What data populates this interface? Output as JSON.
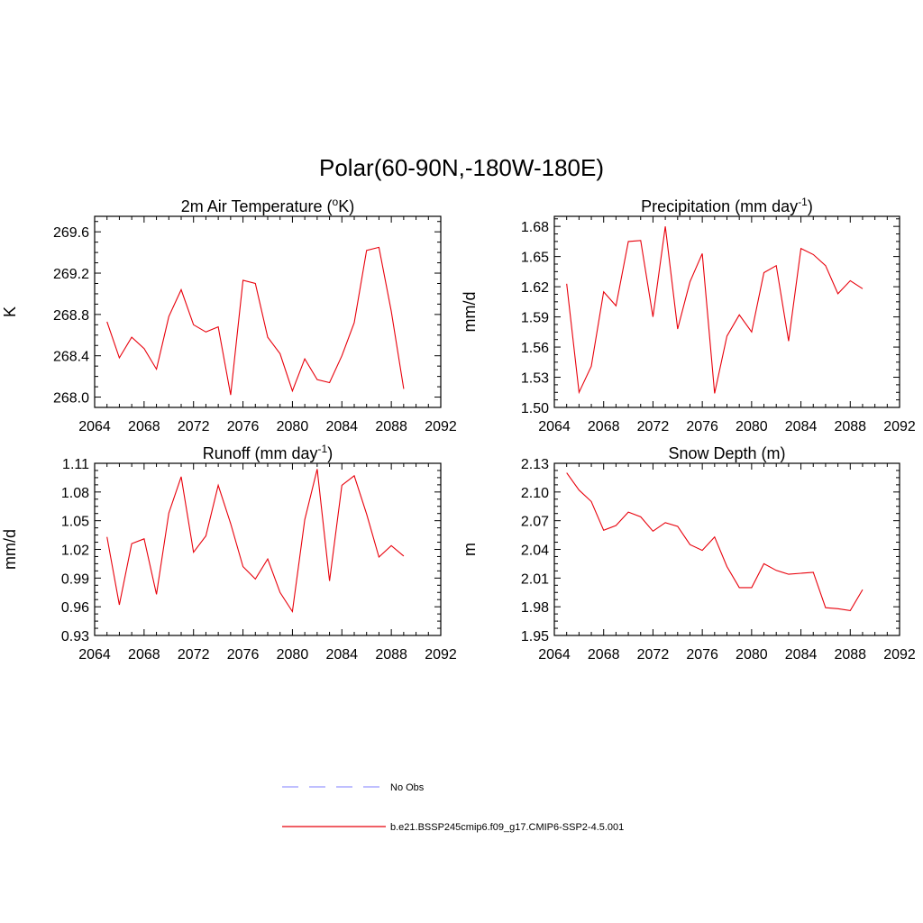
{
  "title": "Polar(60-90N,-180W-180E)",
  "colors": {
    "model": "#e8000b",
    "obs": "#9999ff"
  },
  "legend": {
    "items": [
      {
        "label": "No Obs",
        "style": "dashed",
        "color": "#9999ff"
      },
      {
        "label": "b.e21.BSSP245cmip6.f09_g17.CMIP6-SSP2-4.5.001",
        "style": "solid",
        "color": "#e8000b"
      }
    ]
  },
  "chart_data": [
    {
      "type": "line",
      "title": "2m Air Temperature",
      "title_parts": {
        "pre": "2m Air Temperature (",
        "sup": "o",
        "post": "K)"
      },
      "ylabel": "K",
      "xlim": [
        2064,
        2092
      ],
      "ylim": [
        267.9,
        269.75
      ],
      "xticks": [
        2064,
        2068,
        2072,
        2076,
        2080,
        2084,
        2088,
        2092
      ],
      "yticks": [
        "268.0",
        "268.4",
        "268.8",
        "269.2",
        "269.6"
      ],
      "x": [
        2065,
        2066,
        2067,
        2068,
        2069,
        2070,
        2071,
        2072,
        2073,
        2074,
        2075,
        2076,
        2077,
        2078,
        2079,
        2080,
        2081,
        2082,
        2083,
        2084,
        2085,
        2086,
        2087,
        2088,
        2089
      ],
      "series": [
        {
          "values": [
            268.73,
            268.38,
            268.58,
            268.47,
            268.27,
            268.78,
            269.04,
            268.7,
            268.63,
            268.68,
            268.02,
            269.13,
            269.1,
            268.58,
            268.42,
            268.06,
            268.37,
            268.17,
            268.14,
            268.4,
            268.72,
            269.42,
            269.45,
            268.83,
            268.08
          ]
        }
      ]
    },
    {
      "type": "line",
      "title": "Precipitation (mm day-1)",
      "title_parts": {
        "pre": "Precipitation (mm day",
        "sup": "-1",
        "post": ")"
      },
      "ylabel": "mm/d",
      "xlim": [
        2064,
        2092
      ],
      "ylim": [
        1.5,
        1.69
      ],
      "xticks": [
        2064,
        2068,
        2072,
        2076,
        2080,
        2084,
        2088,
        2092
      ],
      "yticks": [
        "1.50",
        "1.53",
        "1.56",
        "1.59",
        "1.62",
        "1.65",
        "1.68"
      ],
      "x": [
        2065,
        2066,
        2067,
        2068,
        2069,
        2070,
        2071,
        2072,
        2073,
        2074,
        2075,
        2076,
        2077,
        2078,
        2079,
        2080,
        2081,
        2082,
        2083,
        2084,
        2085,
        2086,
        2087,
        2088,
        2089
      ],
      "series": [
        {
          "values": [
            1.623,
            1.515,
            1.541,
            1.615,
            1.601,
            1.665,
            1.666,
            1.59,
            1.68,
            1.578,
            1.625,
            1.653,
            1.514,
            1.571,
            1.592,
            1.575,
            1.634,
            1.641,
            1.566,
            1.658,
            1.652,
            1.641,
            1.613,
            1.626,
            1.618
          ]
        }
      ]
    },
    {
      "type": "line",
      "title": "Runoff (mm day-1)",
      "title_parts": {
        "pre": "Runoff (mm day",
        "sup": "-1",
        "post": ")"
      },
      "ylabel": "mm/d",
      "xlim": [
        2064,
        2092
      ],
      "ylim": [
        0.93,
        1.11
      ],
      "xticks": [
        2064,
        2068,
        2072,
        2076,
        2080,
        2084,
        2088,
        2092
      ],
      "yticks": [
        "0.93",
        "0.96",
        "0.99",
        "1.02",
        "1.05",
        "1.08",
        "1.11"
      ],
      "x": [
        2065,
        2066,
        2067,
        2068,
        2069,
        2070,
        2071,
        2072,
        2073,
        2074,
        2075,
        2076,
        2077,
        2078,
        2079,
        2080,
        2081,
        2082,
        2083,
        2084,
        2085,
        2086,
        2087,
        2088,
        2089
      ],
      "series": [
        {
          "values": [
            1.033,
            0.962,
            1.026,
            1.031,
            0.973,
            1.058,
            1.096,
            1.017,
            1.034,
            1.087,
            1.047,
            1.002,
            0.989,
            1.01,
            0.975,
            0.955,
            1.051,
            1.104,
            0.987,
            1.087,
            1.097,
            1.057,
            1.012,
            1.024,
            1.013
          ]
        }
      ]
    },
    {
      "type": "line",
      "title": "Snow Depth (m)",
      "title_parts": {
        "pre": "Snow Depth (m)",
        "sup": "",
        "post": ""
      },
      "ylabel": "m",
      "xlim": [
        2064,
        2092
      ],
      "ylim": [
        1.95,
        2.13
      ],
      "xticks": [
        2064,
        2068,
        2072,
        2076,
        2080,
        2084,
        2088,
        2092
      ],
      "yticks": [
        "1.95",
        "1.98",
        "2.01",
        "2.04",
        "2.07",
        "2.10",
        "2.13"
      ],
      "x": [
        2065,
        2066,
        2067,
        2068,
        2069,
        2070,
        2071,
        2072,
        2073,
        2074,
        2075,
        2076,
        2077,
        2078,
        2079,
        2080,
        2081,
        2082,
        2083,
        2084,
        2085,
        2086,
        2087,
        2088,
        2089
      ],
      "series": [
        {
          "values": [
            2.12,
            2.102,
            2.09,
            2.06,
            2.065,
            2.079,
            2.074,
            2.059,
            2.068,
            2.064,
            2.045,
            2.039,
            2.053,
            2.022,
            2.0,
            2.0,
            2.025,
            2.018,
            2.014,
            2.015,
            2.016,
            1.979,
            1.978,
            1.976,
            1.998
          ]
        }
      ]
    }
  ]
}
